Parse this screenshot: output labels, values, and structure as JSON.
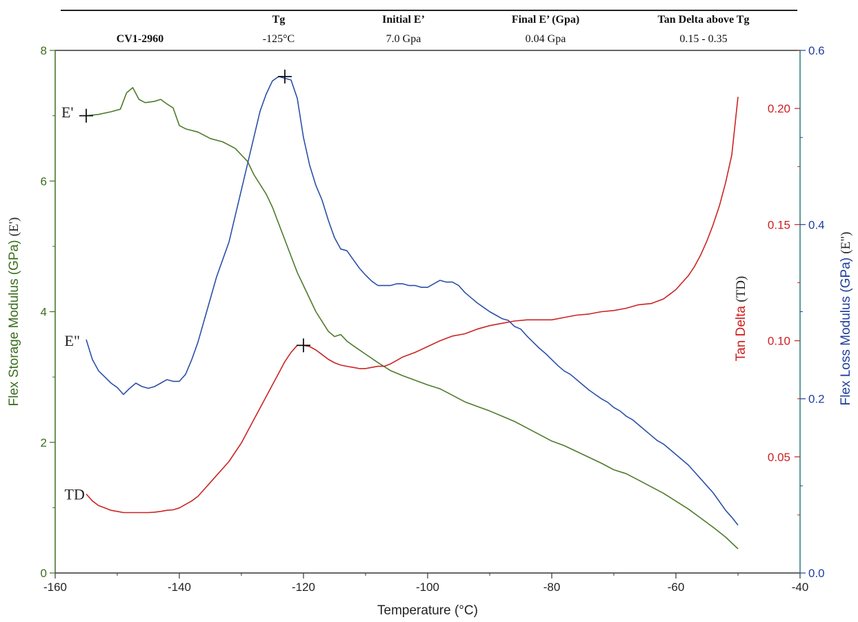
{
  "table": {
    "headers": [
      "",
      "Tg",
      "Initial E’",
      "Final E’ (Gpa)",
      "Tan Delta above Tg"
    ],
    "row": [
      "CV1-2960",
      "-125°C",
      "7.0 Gpa",
      "0.04 Gpa",
      "0.15 - 0.35"
    ]
  },
  "chart_data": {
    "type": "line",
    "xlabel": "Temperature (°C)",
    "xlim": [
      -160,
      -40
    ],
    "xticks": [
      -160,
      -140,
      -120,
      -100,
      -80,
      -60,
      -40
    ],
    "axes": {
      "left": {
        "label_main": "Flex Storage Modulus (GPa)",
        "label_sym": "(E')",
        "ylim": [
          0,
          8
        ],
        "ticks": [
          0,
          2,
          4,
          6,
          8
        ],
        "color": "#3b6e1e"
      },
      "right1": {
        "label_main": "Tan Delta",
        "label_sym": "(TD)",
        "ylim": [
          0,
          0.225
        ],
        "ticks": [
          0.05,
          0.1,
          0.15,
          0.2
        ],
        "tick_labels": [
          "0.05",
          "0.10",
          "0.15",
          "0.20"
        ],
        "color": "#cc1f1f"
      },
      "right2": {
        "label_main": "Flex Loss Modulus (GPa)",
        "label_sym": "(E\")",
        "ylim": [
          0,
          0.6
        ],
        "ticks": [
          0,
          0.2,
          0.4,
          0.6
        ],
        "tick_labels": [
          "0.0",
          "0.2",
          "0.4",
          "0.6"
        ],
        "color": "#1f3f9e"
      }
    },
    "series": [
      {
        "name": "E'",
        "axis": "left",
        "color": "#4e7a2a",
        "x": [
          -155,
          -153,
          -151,
          -149.5,
          -148.5,
          -147.5,
          -146.5,
          -145.5,
          -144,
          -143,
          -142,
          -141,
          -140,
          -139,
          -137,
          -135,
          -133,
          -131,
          -129,
          -128,
          -127,
          -126,
          -125,
          -124,
          -123,
          -122,
          -121,
          -120,
          -119,
          -118,
          -117,
          -116,
          -115,
          -114,
          -113,
          -112,
          -110,
          -108,
          -106,
          -104,
          -102,
          -100,
          -98,
          -96,
          -94,
          -92,
          -90,
          -88,
          -86,
          -84,
          -82,
          -80,
          -78,
          -76,
          -74,
          -72,
          -70,
          -68,
          -66,
          -64,
          -62,
          -60,
          -58,
          -56,
          -54,
          -52,
          -50
        ],
        "y": [
          7.0,
          7.02,
          7.06,
          7.1,
          7.35,
          7.43,
          7.25,
          7.2,
          7.22,
          7.25,
          7.18,
          7.12,
          6.85,
          6.8,
          6.75,
          6.65,
          6.6,
          6.5,
          6.3,
          6.1,
          5.95,
          5.8,
          5.6,
          5.35,
          5.1,
          4.85,
          4.6,
          4.4,
          4.2,
          4.0,
          3.85,
          3.7,
          3.62,
          3.65,
          3.55,
          3.48,
          3.35,
          3.22,
          3.1,
          3.02,
          2.95,
          2.88,
          2.82,
          2.72,
          2.62,
          2.55,
          2.48,
          2.4,
          2.32,
          2.22,
          2.12,
          2.02,
          1.95,
          1.86,
          1.77,
          1.68,
          1.58,
          1.52,
          1.42,
          1.32,
          1.22,
          1.1,
          0.98,
          0.84,
          0.7,
          0.55,
          0.37
        ]
      },
      {
        "name": "E\"",
        "axis": "right2",
        "color": "#2a4fa8",
        "x": [
          -155,
          -154,
          -153,
          -152,
          -151,
          -150,
          -149,
          -148,
          -147,
          -146,
          -145,
          -144,
          -143,
          -142,
          -141,
          -140,
          -139,
          -138,
          -137,
          -136,
          -135,
          -134,
          -133,
          -132,
          -131,
          -130,
          -129,
          -128,
          -127,
          -126,
          -125,
          -124,
          -123,
          -122,
          -121,
          -120,
          -119,
          -118,
          -117,
          -116,
          -115,
          -114,
          -113,
          -112,
          -111,
          -110,
          -109,
          -108,
          -107,
          -106,
          -105,
          -104,
          -103,
          -102,
          -101,
          -100,
          -99,
          -98,
          -97,
          -96,
          -95,
          -94,
          -93,
          -92,
          -91,
          -90,
          -89,
          -88,
          -87,
          -86,
          -85,
          -84,
          -83,
          -82,
          -81,
          -80,
          -79,
          -78,
          -77,
          -76,
          -75,
          -74,
          -73,
          -72,
          -71,
          -70,
          -69,
          -68,
          -67,
          -66,
          -65,
          -64,
          -63,
          -62,
          -61,
          -60,
          -59,
          -58,
          -57,
          -56,
          -55,
          -54,
          -53,
          -52,
          -51,
          -50
        ],
        "y": [
          0.268,
          0.245,
          0.232,
          0.225,
          0.218,
          0.213,
          0.205,
          0.212,
          0.218,
          0.214,
          0.212,
          0.214,
          0.218,
          0.222,
          0.22,
          0.22,
          0.228,
          0.245,
          0.265,
          0.29,
          0.315,
          0.34,
          0.36,
          0.38,
          0.41,
          0.44,
          0.47,
          0.5,
          0.53,
          0.55,
          0.565,
          0.57,
          0.568,
          0.566,
          0.545,
          0.5,
          0.468,
          0.445,
          0.428,
          0.405,
          0.385,
          0.372,
          0.37,
          0.36,
          0.35,
          0.342,
          0.335,
          0.33,
          0.33,
          0.33,
          0.332,
          0.332,
          0.33,
          0.33,
          0.328,
          0.328,
          0.332,
          0.336,
          0.334,
          0.334,
          0.33,
          0.322,
          0.316,
          0.31,
          0.305,
          0.3,
          0.296,
          0.292,
          0.29,
          0.283,
          0.28,
          0.272,
          0.265,
          0.258,
          0.252,
          0.245,
          0.238,
          0.232,
          0.228,
          0.222,
          0.216,
          0.21,
          0.205,
          0.2,
          0.196,
          0.19,
          0.186,
          0.18,
          0.176,
          0.17,
          0.164,
          0.158,
          0.152,
          0.148,
          0.142,
          0.136,
          0.13,
          0.124,
          0.116,
          0.108,
          0.1,
          0.092,
          0.082,
          0.072,
          0.064,
          0.055
        ]
      },
      {
        "name": "TD",
        "axis": "right1",
        "color": "#cc2222",
        "x": [
          -155,
          -154,
          -153,
          -152,
          -151,
          -150,
          -149,
          -148,
          -147,
          -146,
          -145,
          -144,
          -143,
          -142,
          -141,
          -140,
          -139,
          -138,
          -137,
          -136,
          -135,
          -134,
          -133,
          -132,
          -131,
          -130,
          -129,
          -128,
          -127,
          -126,
          -125,
          -124,
          -123,
          -122,
          -121,
          -120,
          -119,
          -118,
          -117,
          -116,
          -115,
          -114,
          -113,
          -112,
          -111,
          -110,
          -109,
          -108,
          -107,
          -106,
          -105,
          -104,
          -102,
          -100,
          -98,
          -96,
          -94,
          -92,
          -90,
          -88,
          -86,
          -84,
          -82,
          -80,
          -78,
          -76,
          -74,
          -72,
          -70,
          -68,
          -66,
          -64,
          -63,
          -62,
          -61,
          -60,
          -59,
          -58,
          -57,
          -56,
          -55,
          -54,
          -53,
          -52,
          -51,
          -50
        ],
        "y": [
          0.034,
          0.031,
          0.029,
          0.028,
          0.027,
          0.0265,
          0.026,
          0.026,
          0.026,
          0.026,
          0.026,
          0.0262,
          0.0265,
          0.027,
          0.0272,
          0.028,
          0.0295,
          0.031,
          0.033,
          0.036,
          0.039,
          0.042,
          0.045,
          0.048,
          0.052,
          0.056,
          0.061,
          0.066,
          0.071,
          0.076,
          0.081,
          0.086,
          0.091,
          0.095,
          0.098,
          0.098,
          0.0975,
          0.096,
          0.094,
          0.092,
          0.0905,
          0.0895,
          0.089,
          0.0885,
          0.088,
          0.088,
          0.0885,
          0.089,
          0.089,
          0.09,
          0.0915,
          0.093,
          0.095,
          0.0975,
          0.1,
          0.102,
          0.103,
          0.105,
          0.1065,
          0.1075,
          0.1085,
          0.109,
          0.109,
          0.109,
          0.11,
          0.111,
          0.1115,
          0.1125,
          0.113,
          0.114,
          0.1155,
          0.116,
          0.117,
          0.118,
          0.12,
          0.122,
          0.125,
          0.128,
          0.132,
          0.137,
          0.143,
          0.15,
          0.158,
          0.168,
          0.18,
          0.205
        ]
      }
    ],
    "markers": [
      {
        "series": "E'",
        "x": -155,
        "y": 7.0
      },
      {
        "series": "E\"",
        "x": -123,
        "y": 0.57
      },
      {
        "series": "TD",
        "x": -120,
        "y": 0.098
      }
    ],
    "annotations": [
      {
        "text": "E'",
        "x": -159,
        "y": 7.05,
        "axis": "left"
      },
      {
        "text": "E\"",
        "x": -158.5,
        "y": 3.55,
        "axis": "left"
      },
      {
        "text": "TD",
        "x": -158.5,
        "y": 1.2,
        "axis": "left"
      }
    ],
    "grid": false,
    "legend": "none"
  }
}
